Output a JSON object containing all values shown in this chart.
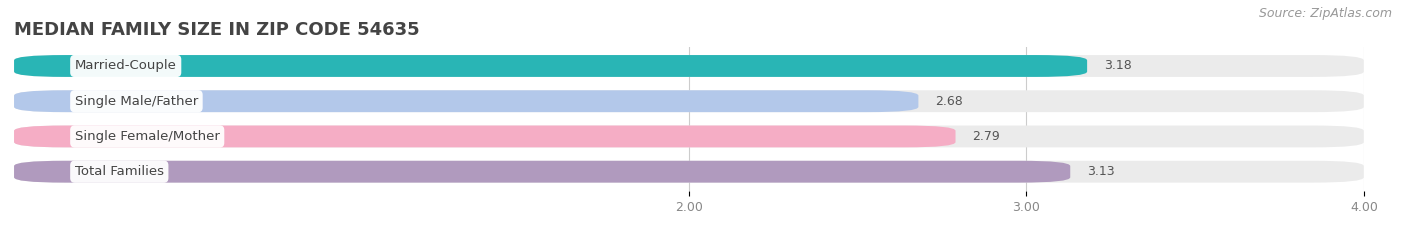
{
  "title": "MEDIAN FAMILY SIZE IN ZIP CODE 54635",
  "source": "Source: ZipAtlas.com",
  "categories": [
    "Married-Couple",
    "Single Male/Father",
    "Single Female/Mother",
    "Total Families"
  ],
  "values": [
    3.18,
    2.68,
    2.79,
    3.13
  ],
  "bar_colors": [
    "#29b5b5",
    "#b3c8ea",
    "#f5adc5",
    "#b09abe"
  ],
  "xlim_left": 0.0,
  "xlim_right": 4.0,
  "xticks": [
    2.0,
    3.0,
    4.0
  ],
  "xtick_labels": [
    "2.00",
    "3.00",
    "4.00"
  ],
  "background_color": "#ffffff",
  "bar_bg_color": "#ebebeb",
  "title_fontsize": 13,
  "source_fontsize": 9,
  "label_fontsize": 9.5,
  "value_fontsize": 9,
  "tick_fontsize": 9,
  "bar_height": 0.62
}
